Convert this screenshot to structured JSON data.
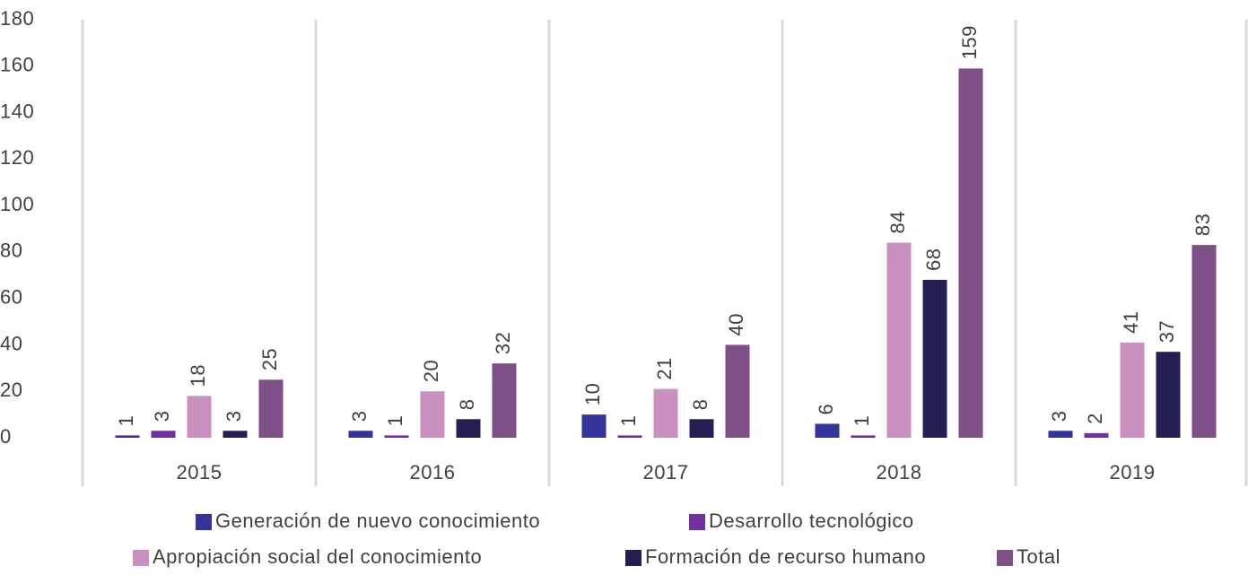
{
  "chart_data": {
    "type": "bar",
    "categories": [
      "2015",
      "2016",
      "2017",
      "2018",
      "2019"
    ],
    "series": [
      {
        "name": "Generación de nuevo conocimiento",
        "color": "#35349a",
        "values": [
          1,
          3,
          10,
          6,
          3
        ]
      },
      {
        "name": "Desarrollo tecnológico",
        "color": "#7030a0",
        "values": [
          3,
          1,
          1,
          1,
          2
        ]
      },
      {
        "name": "Apropiación social del conocimiento",
        "color": "#c990c0",
        "values": [
          18,
          20,
          21,
          84,
          41
        ]
      },
      {
        "name": "Formación de recurso humano",
        "color": "#231f52",
        "values": [
          3,
          8,
          8,
          68,
          37
        ]
      },
      {
        "name": "Total",
        "color": "#7f4f87",
        "values": [
          25,
          32,
          40,
          159,
          83
        ]
      }
    ],
    "ylim": [
      0,
      180
    ],
    "yticks": [
      0,
      20,
      40,
      60,
      80,
      100,
      120,
      140,
      160,
      180
    ],
    "legend": "bottom"
  }
}
